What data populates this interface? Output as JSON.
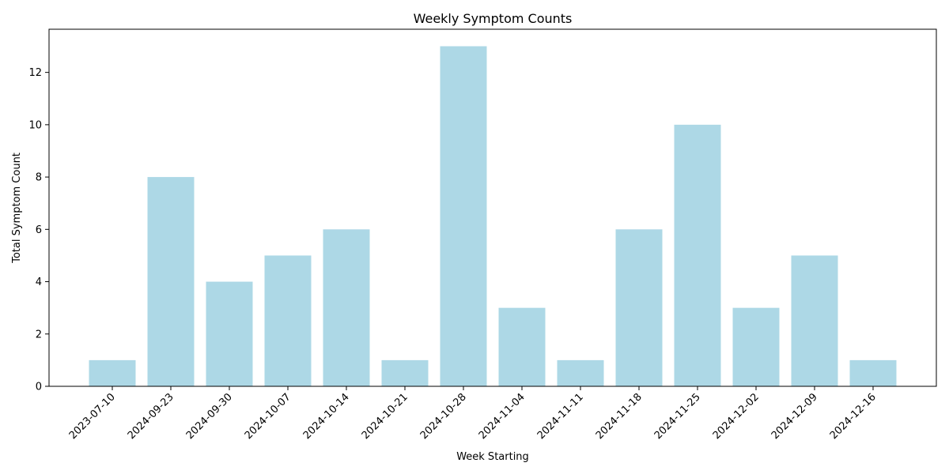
{
  "chart_data": {
    "type": "bar",
    "title": "Weekly Symptom Counts",
    "xlabel": "Week Starting",
    "ylabel": "Total Symptom Count",
    "categories": [
      "2023-07-10",
      "2024-09-23",
      "2024-09-30",
      "2024-10-07",
      "2024-10-14",
      "2024-10-21",
      "2024-10-28",
      "2024-11-04",
      "2024-11-11",
      "2024-11-18",
      "2024-11-25",
      "2024-12-02",
      "2024-12-09",
      "2024-12-16"
    ],
    "values": [
      1,
      8,
      4,
      5,
      6,
      1,
      13,
      3,
      1,
      6,
      10,
      3,
      5,
      1
    ],
    "ylim": [
      0,
      13.65
    ],
    "yticks": [
      0,
      2,
      4,
      6,
      8,
      10,
      12
    ],
    "bar_color": "#add8e6",
    "grid": false,
    "legend": false
  }
}
